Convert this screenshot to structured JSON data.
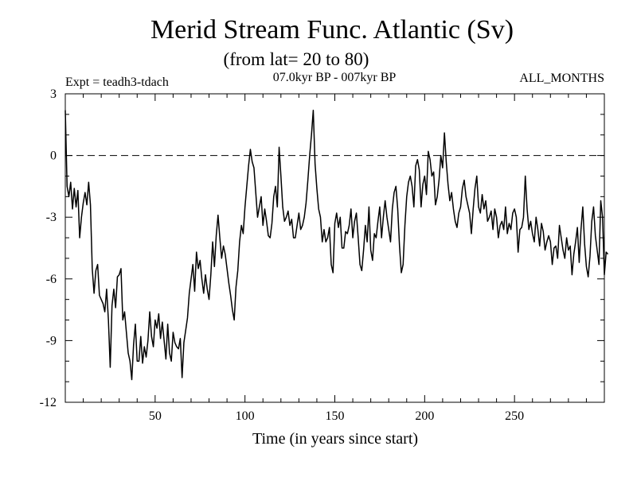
{
  "chart_data": {
    "type": "line",
    "title": "Merid Stream Func. Atlantic (Sv)",
    "subtitle": "(from lat= 20 to 80)",
    "experiment_label": "Expt = teadh3-tdach",
    "period_label": "07.0kyr BP - 007kyr BP",
    "season_label": "ALL_MONTHS",
    "xlabel": "Time (in years since start)",
    "ylabel": "",
    "xlim": [
      0,
      300
    ],
    "ylim": [
      -12,
      3
    ],
    "xticks": [
      50,
      100,
      150,
      200,
      250
    ],
    "yticks": [
      3,
      0,
      -3,
      -6,
      -9,
      -12
    ],
    "reference_line": {
      "y": 0,
      "style": "dashed"
    },
    "grid": false,
    "series": [
      {
        "name": "Merid Stream Func. Atlantic",
        "x_start": 0,
        "x_step": 1,
        "values": [
          2.2,
          -1.5,
          -2.0,
          -1.3,
          -2.6,
          -1.6,
          -2.5,
          -1.7,
          -4.0,
          -3.0,
          -2.3,
          -1.8,
          -2.4,
          -1.3,
          -2.4,
          -5.5,
          -6.7,
          -5.6,
          -5.3,
          -6.8,
          -7.0,
          -7.2,
          -7.6,
          -6.5,
          -8.0,
          -10.3,
          -7.3,
          -6.5,
          -7.4,
          -5.9,
          -5.8,
          -5.5,
          -8.0,
          -7.6,
          -8.6,
          -9.6,
          -10.0,
          -10.9,
          -9.2,
          -8.2,
          -10.0,
          -10.0,
          -8.8,
          -10.1,
          -9.3,
          -9.8,
          -9.0,
          -7.6,
          -8.8,
          -9.3,
          -8.0,
          -8.4,
          -7.7,
          -8.9,
          -8.1,
          -9.0,
          -9.9,
          -8.2,
          -9.6,
          -10.0,
          -8.6,
          -9.1,
          -9.3,
          -9.4,
          -8.9,
          -10.8,
          -9.1,
          -8.5,
          -7.9,
          -6.7,
          -6.0,
          -5.3,
          -6.6,
          -4.7,
          -5.5,
          -5.1,
          -6.0,
          -6.7,
          -5.8,
          -6.5,
          -7.0,
          -5.8,
          -4.2,
          -5.4,
          -3.9,
          -2.9,
          -4.0,
          -5.0,
          -4.4,
          -4.8,
          -5.5,
          -6.2,
          -6.8,
          -7.5,
          -8.0,
          -6.4,
          -5.6,
          -4.2,
          -3.4,
          -3.8,
          -2.5,
          -1.5,
          -0.5,
          0.3,
          -0.3,
          -0.6,
          -1.8,
          -3.0,
          -2.5,
          -2.0,
          -3.4,
          -2.6,
          -3.2,
          -3.9,
          -4.0,
          -3.3,
          -2.0,
          -1.5,
          -2.5,
          0.4,
          -1.0,
          -2.5,
          -3.2,
          -3.0,
          -2.7,
          -3.4,
          -3.1,
          -4.0,
          -4.0,
          -3.4,
          -2.8,
          -3.6,
          -3.4,
          -3.0,
          -2.3,
          -1.2,
          0.0,
          1.0,
          2.2,
          -0.4,
          -1.6,
          -2.6,
          -3.0,
          -4.2,
          -3.6,
          -4.2,
          -4.0,
          -3.5,
          -5.3,
          -5.7,
          -3.3,
          -2.8,
          -3.5,
          -3.0,
          -4.5,
          -4.5,
          -3.7,
          -3.8,
          -3.4,
          -2.6,
          -4.0,
          -3.2,
          -2.8,
          -4.0,
          -5.3,
          -5.6,
          -4.6,
          -3.4,
          -4.2,
          -2.5,
          -4.6,
          -5.1,
          -3.8,
          -4.0,
          -3.2,
          -2.5,
          -4.0,
          -3.0,
          -2.2,
          -3.0,
          -3.6,
          -4.2,
          -2.6,
          -1.8,
          -1.5,
          -2.6,
          -4.4,
          -5.7,
          -5.3,
          -3.4,
          -2.0,
          -1.3,
          -1.0,
          -1.5,
          -2.5,
          -0.5,
          -0.2,
          -0.7,
          -2.5,
          -1.4,
          -1.0,
          -1.9,
          0.2,
          -0.2,
          -1.0,
          -0.8,
          -2.4,
          -2.0,
          -1.2,
          0.0,
          -0.6,
          1.1,
          -0.3,
          -1.4,
          -2.2,
          -1.8,
          -2.6,
          -3.2,
          -3.5,
          -2.8,
          -2.5,
          -1.6,
          -1.2,
          -2.0,
          -2.4,
          -2.8,
          -3.8,
          -2.6,
          -1.6,
          -1.0,
          -2.5,
          -2.8,
          -1.9,
          -2.6,
          -2.2,
          -3.2,
          -3.0,
          -2.7,
          -3.6,
          -2.6,
          -3.0,
          -4.0,
          -3.4,
          -3.2,
          -3.6,
          -2.5,
          -3.8,
          -3.3,
          -3.6,
          -2.8,
          -2.6,
          -3.0,
          -4.7,
          -3.6,
          -3.5,
          -3.0,
          -1.0,
          -2.6,
          -3.6,
          -3.2,
          -3.8,
          -4.2,
          -3.0,
          -3.6,
          -4.4,
          -3.3,
          -3.7,
          -4.6,
          -4.2,
          -3.9,
          -4.2,
          -5.3,
          -4.5,
          -4.4,
          -5.0,
          -3.4,
          -4.0,
          -4.6,
          -5.0,
          -4.0,
          -4.6,
          -4.4,
          -5.8,
          -4.8,
          -4.2,
          -3.5,
          -5.2,
          -3.6,
          -2.5,
          -4.3,
          -5.4,
          -5.9,
          -4.9,
          -3.2,
          -2.5,
          -3.9,
          -4.6,
          -5.3,
          -2.2,
          -3.0,
          -5.8,
          -4.7,
          -4.8
        ]
      }
    ]
  }
}
